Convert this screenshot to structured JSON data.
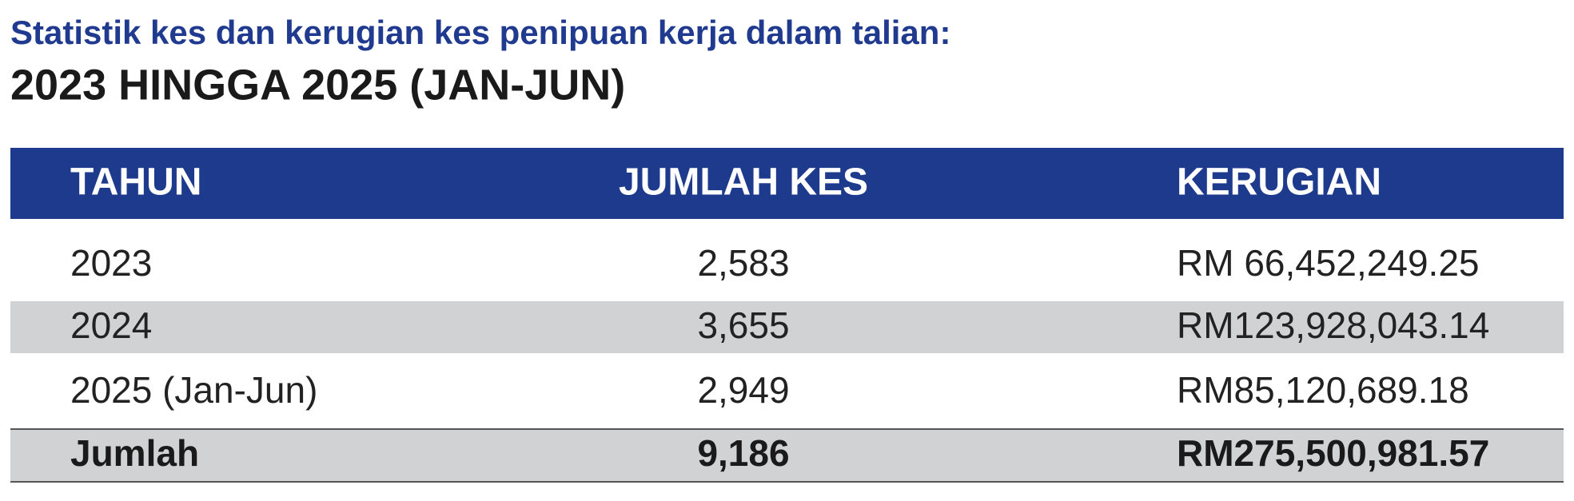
{
  "header": {
    "title": "Statistik kes dan kerugian kes penipuan kerja dalam talian:",
    "subtitle": "2023 HINGGA 2025 (JAN-JUN)"
  },
  "table": {
    "columns": [
      "TAHUN",
      "JUMLAH KES",
      "KERUGIAN"
    ],
    "rows": [
      [
        "2023",
        "2,583",
        "RM 66,452,249.25"
      ],
      [
        "2024",
        "3,655",
        "RM123,928,043.14"
      ],
      [
        "2025 (Jan-Jun)",
        "2,949",
        "RM85,120,689.18"
      ]
    ],
    "total": [
      "Jumlah",
      "9,186",
      "RM275,500,981.57"
    ]
  }
}
